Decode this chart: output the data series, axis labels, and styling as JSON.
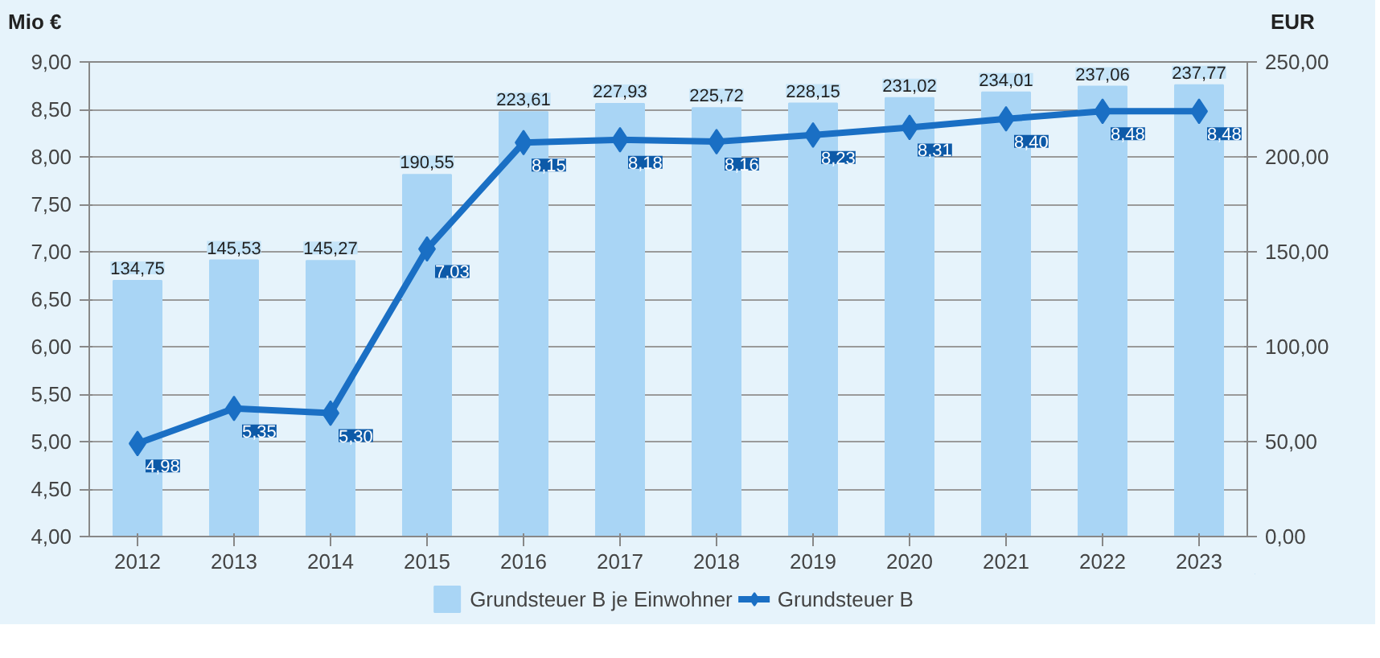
{
  "chart_data": {
    "type": "bar",
    "ylabel": "Mio €",
    "y2label": "EUR",
    "categories": [
      "2012",
      "2013",
      "2014",
      "2015",
      "2016",
      "2017",
      "2018",
      "2019",
      "2020",
      "2021",
      "2022",
      "2023"
    ],
    "series": [
      {
        "name": "Grundsteuer B je Einwohner",
        "axis": "y2",
        "color": "#a9d5f5",
        "values": [
          134.75,
          145.53,
          145.27,
          190.55,
          223.61,
          227.93,
          225.72,
          228.15,
          231.02,
          234.01,
          237.06,
          237.77
        ],
        "value_labels": [
          "134,75",
          "145,53",
          "145,27",
          "190,55",
          "223,61",
          "227,93",
          "225,72",
          "228,15",
          "231,02",
          "234,01",
          "237,06",
          "237,77"
        ]
      },
      {
        "name": "Grundsteuer B",
        "type": "line",
        "color": "#1a6fc4",
        "marker": "diamond",
        "values": [
          4.98,
          5.35,
          5.3,
          7.03,
          8.15,
          8.18,
          8.16,
          8.23,
          8.31,
          8.4,
          8.48,
          8.48
        ],
        "value_labels": [
          "4,98",
          "5,35",
          "5,30",
          "7,03",
          "8,15",
          "8,18",
          "8,16",
          "8,23",
          "8,31",
          "8,40",
          "8,48",
          "8,48"
        ]
      }
    ],
    "ylim": [
      4,
      9
    ],
    "yticks": [
      {
        "value": 4,
        "label": "4,00"
      },
      {
        "value": 4.5,
        "label": "4,50"
      },
      {
        "value": 5,
        "label": "5,00"
      },
      {
        "value": 5.5,
        "label": "5,50"
      },
      {
        "value": 6,
        "label": "6,00"
      },
      {
        "value": 6.5,
        "label": "6,50"
      },
      {
        "value": 7,
        "label": "7,00"
      },
      {
        "value": 7.5,
        "label": "7,50"
      },
      {
        "value": 8,
        "label": "8,00"
      },
      {
        "value": 8.5,
        "label": "8,50"
      },
      {
        "value": 9,
        "label": "9,00"
      }
    ],
    "y2lim": [
      0,
      250
    ],
    "y2ticks": [
      {
        "value": 0,
        "label": "0,00"
      },
      {
        "value": 50,
        "label": "50,00"
      },
      {
        "value": 100,
        "label": "100,00"
      },
      {
        "value": 150,
        "label": "150,00"
      },
      {
        "value": 200,
        "label": "200,00"
      },
      {
        "value": 250,
        "label": "250,00"
      }
    ],
    "grid": "y",
    "legend": "bottom"
  }
}
